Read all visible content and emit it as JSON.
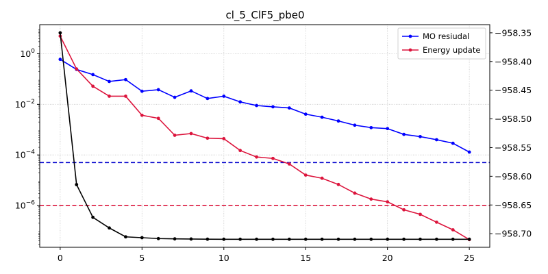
{
  "chart_data": {
    "type": "line",
    "title": "cl_5_ClF5_pbe0",
    "x": [
      0,
      1,
      2,
      3,
      4,
      5,
      6,
      7,
      8,
      9,
      10,
      11,
      12,
      13,
      14,
      15,
      16,
      17,
      18,
      19,
      20,
      21,
      22,
      23,
      24,
      25
    ],
    "xlim": [
      -1.25,
      26.25
    ],
    "xticks": [
      0,
      5,
      10,
      15,
      20,
      25
    ],
    "left_axis": {
      "scale": "log",
      "ylim_log10": [
        -7.65,
        1.15
      ],
      "ticks": [
        {
          "log10": 0,
          "base": "10",
          "exp": "0"
        },
        {
          "log10": -2,
          "base": "10",
          "exp": "−2"
        },
        {
          "log10": -4,
          "base": "10",
          "exp": "−4"
        },
        {
          "log10": -6,
          "base": "10",
          "exp": "−6"
        }
      ]
    },
    "right_axis": {
      "scale": "linear",
      "ylim": [
        -958.7237,
        -958.3358
      ],
      "ticks": [
        -958.35,
        -958.4,
        -958.45,
        -958.5,
        -958.55,
        -958.6,
        -958.65,
        -958.7
      ],
      "tick_labels": [
        "−958.35",
        "−958.40",
        "−958.45",
        "−958.50",
        "−958.55",
        "−958.60",
        "−958.65",
        "−958.70"
      ]
    },
    "grid": true,
    "legend": "top-right",
    "series": [
      {
        "name": "MO resiudal",
        "axis": "left",
        "color": "#0000ff",
        "values": [
          0.6,
          0.24,
          0.15,
          0.08,
          0.095,
          0.033,
          0.038,
          0.019,
          0.034,
          0.017,
          0.021,
          0.0125,
          0.009,
          0.008,
          0.0072,
          0.0041,
          0.0031,
          0.0022,
          0.0015,
          0.0012,
          0.0011,
          0.00065,
          0.00053,
          0.0004,
          0.00029,
          0.00013
        ]
      },
      {
        "name": "Energy update",
        "axis": "left",
        "color": "#dc143c",
        "values": [
          5.0,
          0.25,
          0.052,
          0.021,
          0.021,
          0.0037,
          0.0028,
          0.0006,
          0.0007,
          0.00046,
          0.00044,
          0.00015,
          8.3e-05,
          7.3e-05,
          4.4e-05,
          1.6e-05,
          1.2e-05,
          6.8e-06,
          3.1e-06,
          1.8e-06,
          1.4e-06,
          6.8e-07,
          4.5e-07,
          2.2e-07,
          1.1e-07,
          4.5e-08
        ]
      },
      {
        "axis": "right",
        "color": "#000000",
        "values": [
          -958.35,
          -958.6145,
          -958.6715,
          -958.69,
          -958.7055,
          -958.707,
          -958.7085,
          -958.709,
          -958.7093,
          -958.7096,
          -958.7097,
          -958.7097,
          -958.7097,
          -958.7097,
          -958.7097,
          -958.7097,
          -958.7097,
          -958.7097,
          -958.7097,
          -958.7097,
          -958.7097,
          -958.7097,
          -958.7097,
          -958.7097,
          -958.7097,
          -958.7097
        ]
      }
    ],
    "reference_lines": [
      {
        "axis": "left",
        "y": 5e-05,
        "color": "#0000cd",
        "style": "dashed"
      },
      {
        "axis": "left",
        "y": 1e-06,
        "color": "#dc143c",
        "style": "dashed"
      }
    ]
  }
}
